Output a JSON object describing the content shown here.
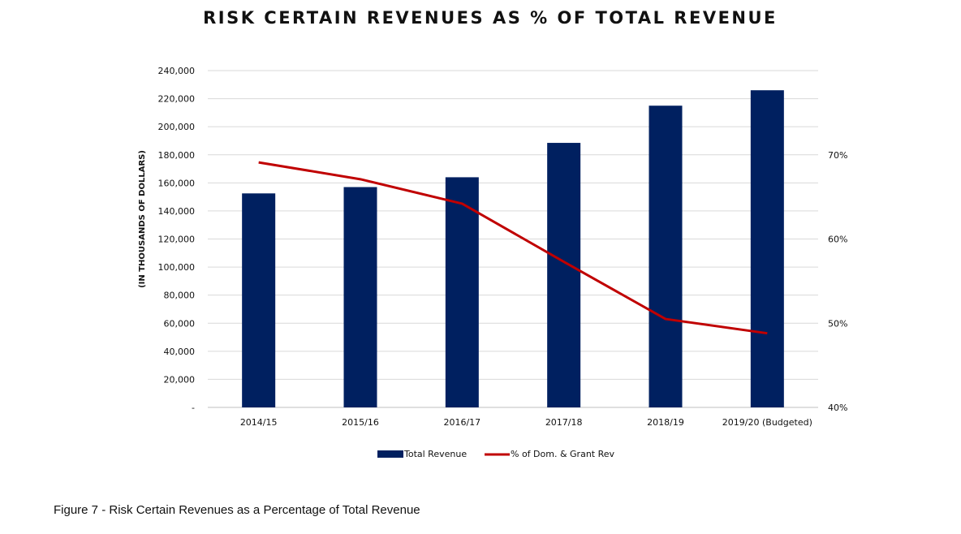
{
  "chart_data": {
    "type": "bar",
    "title": "RISK CERTAIN REVENUES AS % OF TOTAL REVENUE",
    "ylabel": "(IN THOUSANDS OF DOLLARS)",
    "categories": [
      "2014/15",
      "2015/16",
      "2016/17",
      "2017/18",
      "2018/19",
      "2019/20 (Budgeted)"
    ],
    "series": [
      {
        "name": "Total Revenue",
        "type": "bar",
        "axis": "left",
        "color": "#002060",
        "values": [
          152500,
          157000,
          164000,
          188500,
          215000,
          226000
        ]
      },
      {
        "name": "% of Dom. & Grant Rev",
        "type": "line",
        "axis": "right",
        "color": "#c00000",
        "values": [
          69.1,
          67.1,
          64.2,
          57.3,
          50.5,
          48.8
        ]
      }
    ],
    "ylim": [
      0,
      240000
    ],
    "y_ticks": [
      0,
      20000,
      40000,
      60000,
      80000,
      100000,
      120000,
      140000,
      160000,
      180000,
      200000,
      220000,
      240000
    ],
    "y_tick_labels": [
      "-",
      "20,000",
      "40,000",
      "60,000",
      "80,000",
      "100,000",
      "120,000",
      "140,000",
      "160,000",
      "180,000",
      "200,000",
      "220,000",
      "240,000"
    ],
    "y2lim": [
      40,
      80
    ],
    "y2_ticks": [
      40,
      50,
      60,
      70
    ],
    "y2_tick_labels": [
      "40%",
      "50%",
      "60%",
      "70%"
    ],
    "grid": true,
    "legend": "bottom-center"
  },
  "caption": "Figure 7 - Risk Certain Revenues as a Percentage of Total Revenue"
}
